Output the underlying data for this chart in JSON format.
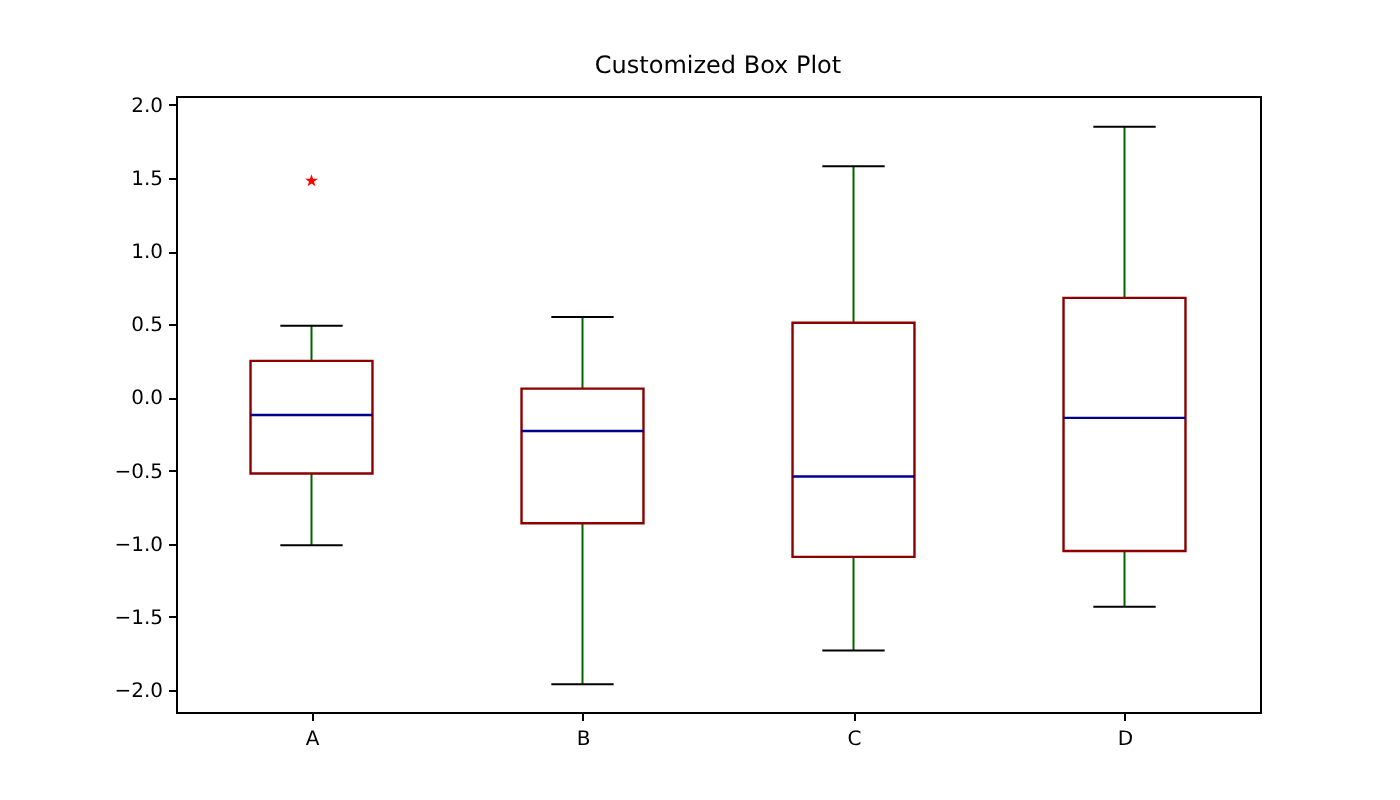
{
  "chart_data": {
    "type": "box",
    "title": "Customized Box Plot",
    "categories": [
      "A",
      "B",
      "C",
      "D"
    ],
    "series": [
      {
        "color": "#8b0000",
        "boxes": [
          {
            "low": -1.01,
            "q1": -0.52,
            "median": -0.12,
            "q3": 0.25,
            "high": 0.49,
            "outliers": [
              1.48
            ]
          },
          {
            "low": -1.96,
            "q1": -0.86,
            "median": -0.23,
            "q3": 0.06,
            "high": 0.55
          },
          {
            "low": -1.73,
            "q1": -1.09,
            "median": -0.54,
            "q3": 0.51,
            "high": 1.58
          },
          {
            "low": -1.43,
            "q1": -1.05,
            "median": -0.14,
            "q3": 0.68,
            "high": 1.85
          }
        ]
      }
    ],
    "ylim": [
      -2.15,
      2.06
    ],
    "yticks": [
      {
        "value": -2.0,
        "label": "−2.0"
      },
      {
        "value": -1.5,
        "label": "−1.5"
      },
      {
        "value": -1.0,
        "label": "−1.0"
      },
      {
        "value": -0.5,
        "label": "−0.5"
      },
      {
        "value": 0.0,
        "label": "0.0"
      },
      {
        "value": 0.5,
        "label": "0.5"
      },
      {
        "value": 1.0,
        "label": "1.0"
      },
      {
        "value": 1.5,
        "label": "1.5"
      },
      {
        "value": 2.0,
        "label": "2.0"
      }
    ],
    "grid": false,
    "marker": "star"
  }
}
